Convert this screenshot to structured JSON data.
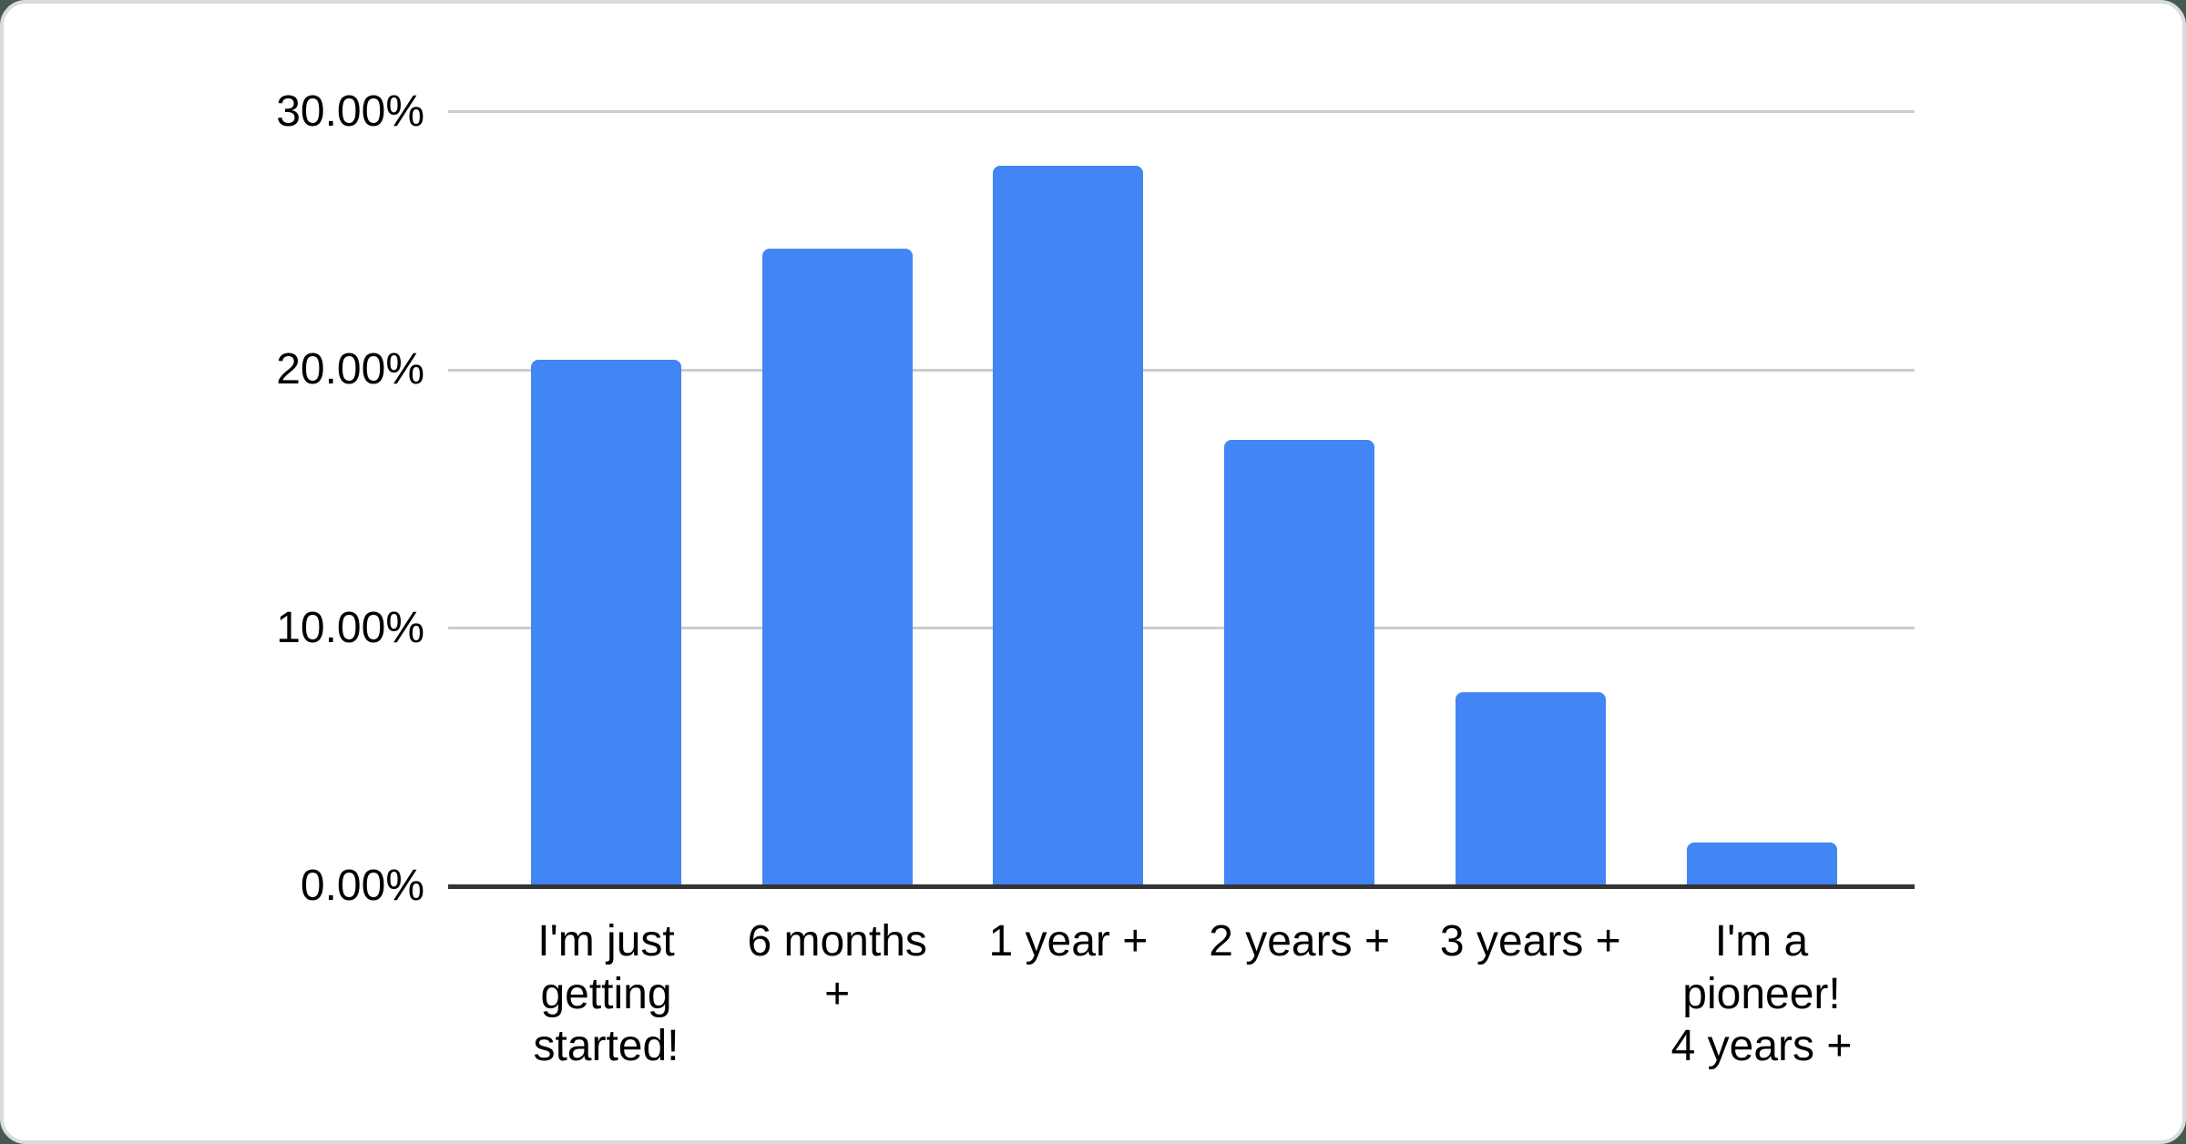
{
  "chart_data": {
    "type": "bar",
    "title": "",
    "xlabel": "",
    "ylabel": "",
    "categories": [
      "I'm just getting started!",
      "6 months +",
      "1 year +",
      "2 years +",
      "3 years +",
      "I'm a pioneer! 4 years +"
    ],
    "category_label_lines": [
      [
        "I'm just",
        "getting",
        "started!"
      ],
      [
        "6 months",
        "+"
      ],
      [
        "1 year +"
      ],
      [
        "2 years +"
      ],
      [
        "3 years +"
      ],
      [
        "I'm a",
        "pioneer!",
        "4 years +"
      ]
    ],
    "values": [
      20.4,
      24.7,
      27.9,
      17.3,
      7.5,
      1.7
    ],
    "value_unit": "%",
    "ylim": [
      0,
      30
    ],
    "y_ticks": [
      {
        "value": 0,
        "label": "0.00%"
      },
      {
        "value": 10,
        "label": "10.00%"
      },
      {
        "value": 20,
        "label": "20.00%"
      },
      {
        "value": 30,
        "label": "30.00%"
      }
    ],
    "grid": true,
    "legend_position": "none",
    "colors": {
      "bar": "#4285F4",
      "gridline": "#cccccc",
      "axis_line": "#333333",
      "tick_text": "#000000",
      "card_background": "#ffffff",
      "card_border": "#d8dce0",
      "page_background": "#455a4c"
    }
  }
}
